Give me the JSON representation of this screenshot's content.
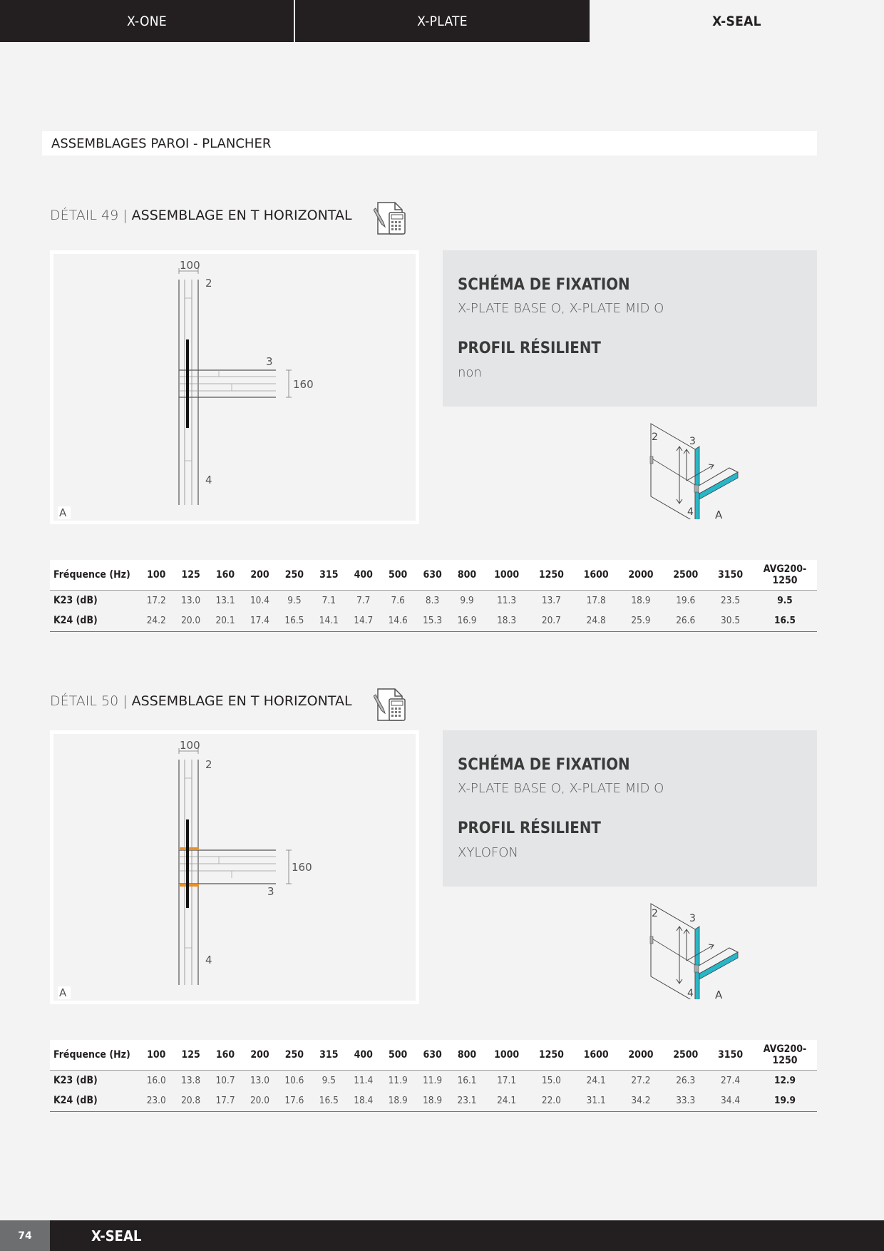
{
  "tabs": [
    {
      "label": "X-ONE"
    },
    {
      "label": "X-PLATE"
    },
    {
      "label": "X-SEAL"
    }
  ],
  "section_title": "ASSEMBLAGES PAROI - PLANCHER",
  "details": [
    {
      "number_label": "DÉTAIL 49 |",
      "title": "ASSEMBLAGE EN T HORIZONTAL",
      "drawing": {
        "dim_top": "100",
        "dim_side": "160",
        "label_2": "2",
        "label_3": "3",
        "label_4": "4",
        "corner": "A"
      },
      "fixation_heading": "SCHÉMA DE FIXATION",
      "fixation_value": "X-PLATE BASE O, X-PLATE MID O",
      "profil_heading": "PROFIL RÉSILIENT",
      "profil_value": "non",
      "iso": {
        "label_2": "2",
        "label_3": "3",
        "label_4": "4",
        "label_a": "A"
      },
      "table": {
        "header_label": "Fréquence (Hz)",
        "frequencies": [
          "100",
          "125",
          "160",
          "200",
          "250",
          "315",
          "400",
          "500",
          "630",
          "800",
          "1000",
          "1250",
          "1600",
          "2000",
          "2500",
          "3150"
        ],
        "avg_header": "AVG200-1250",
        "rows": [
          {
            "label": "K23 (dB)",
            "values": [
              "17.2",
              "13.0",
              "13.1",
              "10.4",
              "9.5",
              "7.1",
              "7.7",
              "7.6",
              "8.3",
              "9.9",
              "11.3",
              "13.7",
              "17.8",
              "18.9",
              "19.6",
              "23.5"
            ],
            "avg": "9.5"
          },
          {
            "label": "K24 (dB)",
            "values": [
              "24.2",
              "20.0",
              "20.1",
              "17.4",
              "16.5",
              "14.1",
              "14.7",
              "14.6",
              "15.3",
              "16.9",
              "18.3",
              "20.7",
              "24.8",
              "25.9",
              "26.6",
              "30.5"
            ],
            "avg": "16.5"
          }
        ]
      }
    },
    {
      "number_label": "DÉTAIL 50 |",
      "title": "ASSEMBLAGE EN T HORIZONTAL",
      "drawing": {
        "dim_top": "100",
        "dim_side": "160",
        "label_2": "2",
        "label_3": "3",
        "label_4": "4",
        "corner": "A"
      },
      "fixation_heading": "SCHÉMA DE FIXATION",
      "fixation_value": "X-PLATE BASE O, X-PLATE MID O",
      "profil_heading": "PROFIL RÉSILIENT",
      "profil_value": "XYLOFON",
      "iso": {
        "label_2": "2",
        "label_3": "3",
        "label_4": "4",
        "label_a": "A"
      },
      "table": {
        "header_label": "Fréquence (Hz)",
        "frequencies": [
          "100",
          "125",
          "160",
          "200",
          "250",
          "315",
          "400",
          "500",
          "630",
          "800",
          "1000",
          "1250",
          "1600",
          "2000",
          "2500",
          "3150"
        ],
        "avg_header": "AVG200-1250",
        "rows": [
          {
            "label": "K23 (dB)",
            "values": [
              "16.0",
              "13.8",
              "10.7",
              "13.0",
              "10.6",
              "9.5",
              "11.4",
              "11.9",
              "11.9",
              "16.1",
              "17.1",
              "15.0",
              "24.1",
              "27.2",
              "26.3",
              "27.4"
            ],
            "avg": "12.9"
          },
          {
            "label": "K24 (dB)",
            "values": [
              "23.0",
              "20.8",
              "17.7",
              "20.0",
              "17.6",
              "16.5",
              "18.4",
              "18.9",
              "18.9",
              "23.1",
              "24.1",
              "22.0",
              "31.1",
              "34.2",
              "33.3",
              "34.4"
            ],
            "avg": "19.9"
          }
        ]
      }
    }
  ],
  "colors": {
    "dark": "#231f20",
    "accent": "#29b6c8",
    "resilient": "#e8902a"
  },
  "footer": {
    "page_number": "74",
    "product": "X-SEAL"
  }
}
